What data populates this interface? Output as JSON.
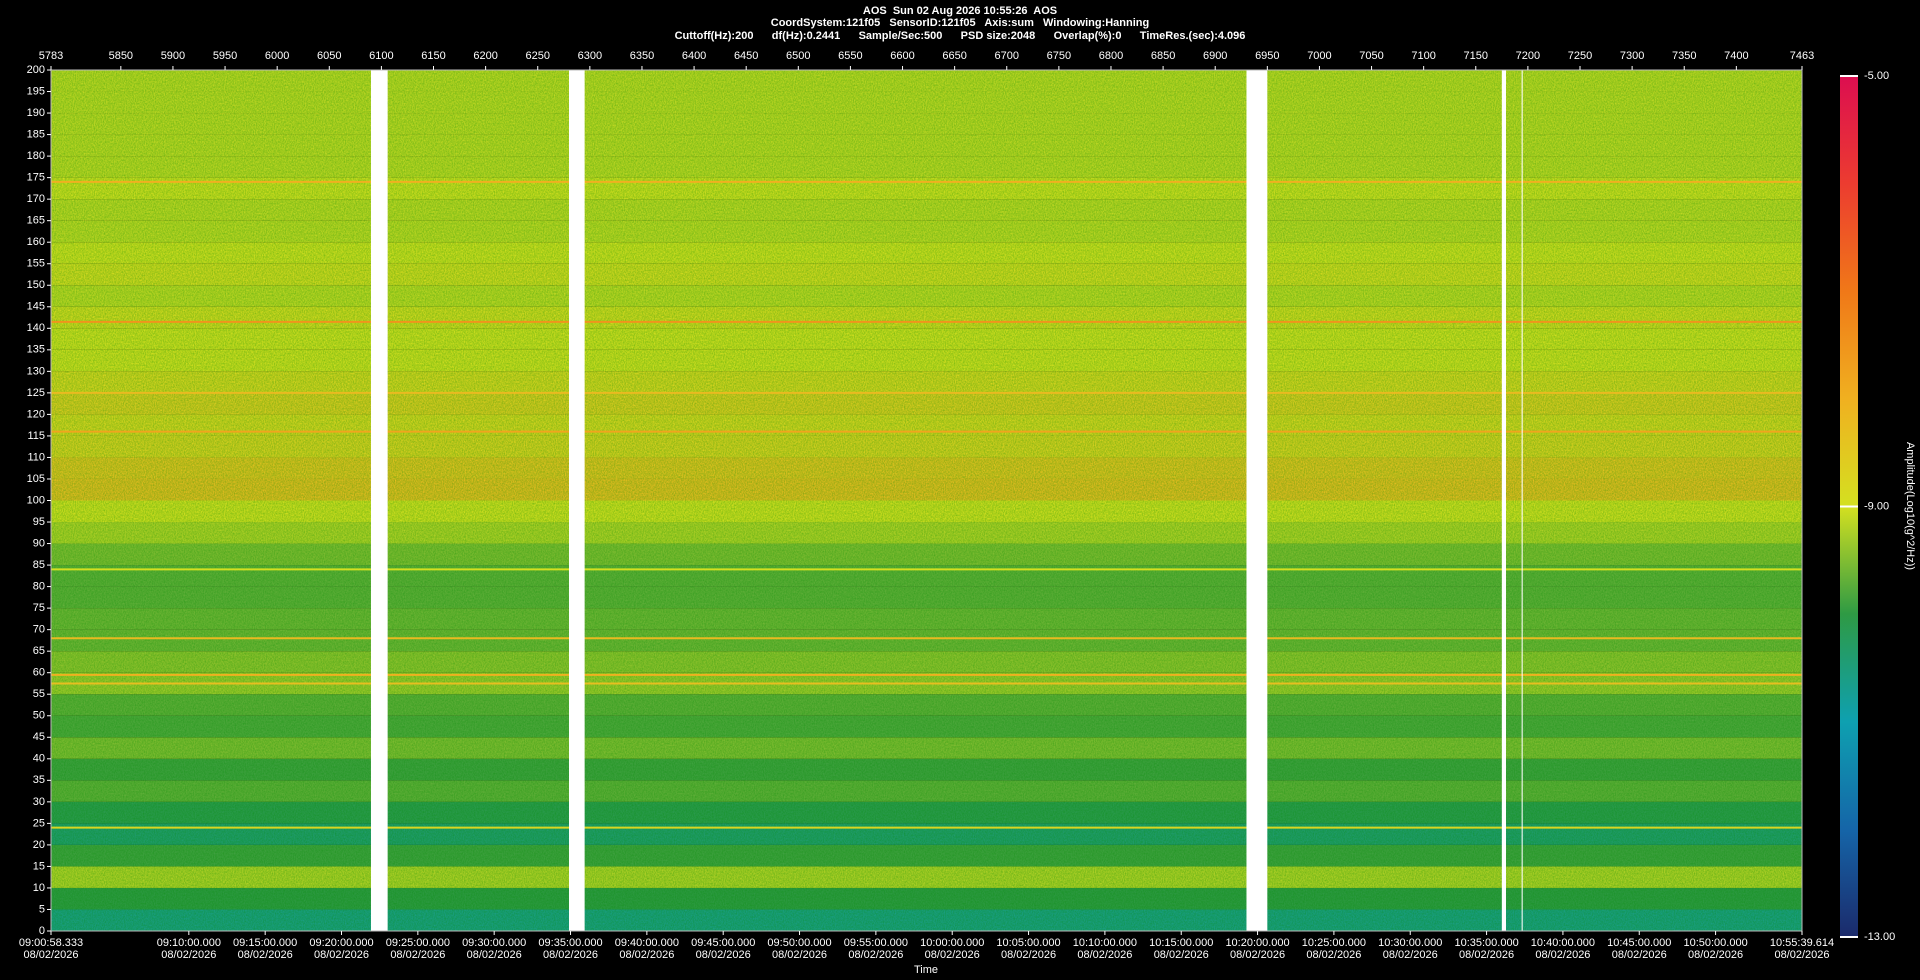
{
  "chart_data": {
    "type": "heatmap",
    "title": "AOS  Sun 02 Aug 2026 10:55:26  AOS",
    "subtitle": "CoordSystem:121f05   SensorID:121f05   Axis:sum   Windowing:Hanning",
    "info": "Cuttoff(Hz):200      df(Hz):0.2441      Sample/Sec:500      PSD size:2048      Overlap(%):0      TimeRes.(sec):4.096",
    "xlabel": "Time",
    "colorbar_label": "Amplitude(Log10(g^2/Hz))",
    "xlim": [
      5783,
      7463
    ],
    "xticks": [
      5783,
      5850,
      5900,
      5950,
      6000,
      6050,
      6100,
      6150,
      6200,
      6250,
      6300,
      6350,
      6400,
      6450,
      6500,
      6550,
      6600,
      6650,
      6700,
      6750,
      6800,
      6850,
      6900,
      6950,
      7000,
      7050,
      7100,
      7150,
      7200,
      7250,
      7300,
      7350,
      7400,
      7463
    ],
    "time_ticks": [
      {
        "value": 5783,
        "label": "09:00:58.333",
        "date": "08/02/2026"
      },
      {
        "value": 5915.24,
        "label": "09:10:00.000",
        "date": "08/02/2026"
      },
      {
        "value": 5988.49,
        "label": "09:15:00.000",
        "date": "08/02/2026"
      },
      {
        "value": 6061.73,
        "label": "09:20:00.000",
        "date": "08/02/2026"
      },
      {
        "value": 6134.97,
        "label": "09:25:00.000",
        "date": "08/02/2026"
      },
      {
        "value": 6208.21,
        "label": "09:30:00.000",
        "date": "08/02/2026"
      },
      {
        "value": 6281.46,
        "label": "09:35:00.000",
        "date": "08/02/2026"
      },
      {
        "value": 6354.7,
        "label": "09:40:00.000",
        "date": "08/02/2026"
      },
      {
        "value": 6427.94,
        "label": "09:45:00.000",
        "date": "08/02/2026"
      },
      {
        "value": 6501.18,
        "label": "09:50:00.000",
        "date": "08/02/2026"
      },
      {
        "value": 6574.43,
        "label": "09:55:00.000",
        "date": "08/02/2026"
      },
      {
        "value": 6647.67,
        "label": "10:00:00.000",
        "date": "08/02/2026"
      },
      {
        "value": 6720.91,
        "label": "10:05:00.000",
        "date": "08/02/2026"
      },
      {
        "value": 6794.15,
        "label": "10:10:00.000",
        "date": "08/02/2026"
      },
      {
        "value": 6867.4,
        "label": "10:15:00.000",
        "date": "08/02/2026"
      },
      {
        "value": 6940.64,
        "label": "10:20:00.000",
        "date": "08/02/2026"
      },
      {
        "value": 7013.88,
        "label": "10:25:00.000",
        "date": "08/02/2026"
      },
      {
        "value": 7087.12,
        "label": "10:30:00.000",
        "date": "08/02/2026"
      },
      {
        "value": 7160.37,
        "label": "10:35:00.000",
        "date": "08/02/2026"
      },
      {
        "value": 7233.61,
        "label": "10:40:00.000",
        "date": "08/02/2026"
      },
      {
        "value": 7306.85,
        "label": "10:45:00.000",
        "date": "08/02/2026"
      },
      {
        "value": 7380.09,
        "label": "10:50:00.000",
        "date": "08/02/2026"
      },
      {
        "value": 7463,
        "label": "10:55:39.614",
        "date": "08/02/2026"
      }
    ],
    "ylim": [
      0,
      200
    ],
    "yticks": [
      0,
      5,
      10,
      15,
      20,
      25,
      30,
      35,
      40,
      45,
      50,
      55,
      60,
      65,
      70,
      75,
      80,
      85,
      90,
      95,
      100,
      105,
      110,
      115,
      120,
      125,
      130,
      135,
      140,
      145,
      150,
      155,
      160,
      165,
      170,
      175,
      180,
      185,
      190,
      195,
      200
    ],
    "y_edges": [
      0,
      5,
      10,
      15,
      20,
      25,
      30,
      35,
      40,
      45,
      50,
      55,
      60,
      65,
      70,
      75,
      80,
      85,
      90,
      95,
      100,
      105,
      110,
      115,
      120,
      125,
      130,
      135,
      140,
      145,
      150,
      155,
      160,
      165,
      170,
      175,
      180,
      185,
      190,
      195,
      200
    ],
    "values": [
      -10.6,
      -10.0,
      -9.2,
      -9.9,
      -10.4,
      -10.1,
      -9.7,
      -9.9,
      -9.5,
      -9.8,
      -9.7,
      -9.3,
      -9.4,
      -9.6,
      -9.6,
      -9.7,
      -9.7,
      -9.5,
      -9.2,
      -9.0,
      -8.3,
      -8.4,
      -8.7,
      -8.8,
      -8.6,
      -8.8,
      -9.0,
      -9.0,
      -8.9,
      -9.1,
      -8.9,
      -9.0,
      -9.1,
      -9.1,
      -9.0,
      -9.1,
      -9.1,
      -9.1,
      -9.1,
      -9.1
    ],
    "lines": [
      {
        "y": 174,
        "value": -8.0
      },
      {
        "y": 141.5,
        "value": -7.5
      },
      {
        "y": 125,
        "value": -8.2
      },
      {
        "y": 116,
        "value": -7.8
      },
      {
        "y": 84,
        "value": -9.0
      },
      {
        "y": 68,
        "value": -8.2
      },
      {
        "y": 59.5,
        "value": -8.0
      },
      {
        "y": 57.5,
        "value": -8.3
      },
      {
        "y": 24,
        "value": -8.8
      }
    ],
    "gaps": [
      [
        6090,
        6106
      ],
      [
        6280,
        6295
      ],
      [
        6930,
        6950
      ],
      [
        7175,
        7179
      ],
      [
        7194,
        7195
      ]
    ],
    "zlim": [
      -13,
      -5
    ],
    "zticks": [
      {
        "value": -5,
        "label": "-5.00"
      },
      {
        "value": -9,
        "label": "-9.00"
      },
      {
        "value": -13,
        "label": "-13.00"
      }
    ],
    "colormap": [
      "#1b2a6b",
      "#1565a8",
      "#0ea0b0",
      "#2e9a44",
      "#d4e020",
      "#f0b020",
      "#f07818",
      "#ec3c30",
      "#dc0e50"
    ]
  }
}
